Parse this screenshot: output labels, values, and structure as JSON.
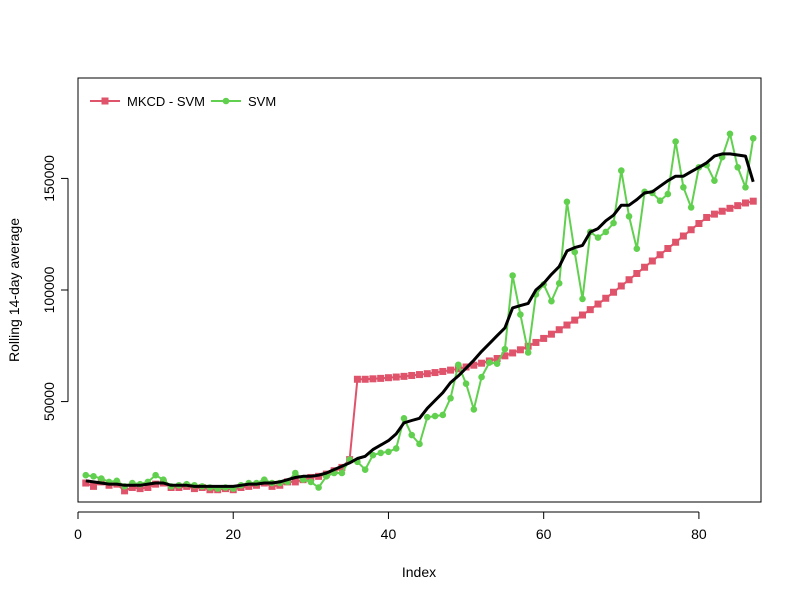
{
  "chart_data": {
    "type": "line",
    "xlabel": "Index",
    "ylabel": "Rolling 14-day average",
    "xlim": [
      0,
      88
    ],
    "ylim": [
      5000,
      195000
    ],
    "x_ticks": [
      0,
      20,
      40,
      60,
      80
    ],
    "y_ticks": [
      50000,
      100000,
      150000
    ],
    "grid": false,
    "legend_position": "top-left",
    "series": [
      {
        "name": "MKCD - SVM",
        "color": "#DF536B",
        "marker": "square",
        "line_width": 2,
        "x": [
          1,
          2,
          3,
          4,
          5,
          6,
          7,
          8,
          9,
          10,
          11,
          12,
          13,
          14,
          15,
          16,
          17,
          18,
          19,
          20,
          21,
          22,
          23,
          24,
          25,
          26,
          27,
          28,
          29,
          30,
          31,
          32,
          33,
          34,
          35,
          36,
          37,
          38,
          39,
          40,
          41,
          42,
          43,
          44,
          45,
          46,
          47,
          48,
          49,
          50,
          51,
          52,
          53,
          54,
          55,
          56,
          57,
          58,
          59,
          60,
          61,
          62,
          63,
          64,
          65,
          66,
          67,
          68,
          69,
          70,
          71,
          72,
          73,
          74,
          75,
          76,
          77,
          78,
          79,
          80,
          81,
          82,
          83,
          84,
          85,
          86,
          87
        ],
        "y": [
          13500,
          12000,
          14000,
          12500,
          13000,
          10000,
          11500,
          11000,
          11500,
          13000,
          13500,
          11500,
          11500,
          12000,
          11000,
          11500,
          10500,
          10500,
          11000,
          10500,
          11500,
          12000,
          12500,
          13500,
          12000,
          12500,
          14000,
          14000,
          15000,
          16000,
          16500,
          17500,
          19000,
          20500,
          24000,
          60000,
          60000,
          60200,
          60400,
          60700,
          61000,
          61300,
          61700,
          62100,
          62500,
          63000,
          63500,
          64100,
          64700,
          65500,
          66300,
          67200,
          68200,
          69300,
          70500,
          71800,
          73200,
          74800,
          76500,
          78300,
          80200,
          82200,
          84300,
          86500,
          88800,
          91200,
          93700,
          96300,
          99000,
          101800,
          104600,
          107400,
          110200,
          113000,
          115800,
          118600,
          121400,
          124200,
          127000,
          129800,
          132500,
          134000,
          135300,
          136600,
          137800,
          139000,
          139800
        ]
      },
      {
        "name": "SVM",
        "color": "#61D04F",
        "marker": "circle",
        "line_width": 2,
        "x": [
          1,
          2,
          3,
          4,
          5,
          6,
          7,
          8,
          9,
          10,
          11,
          12,
          13,
          14,
          15,
          16,
          17,
          18,
          19,
          20,
          21,
          22,
          23,
          24,
          25,
          26,
          27,
          28,
          29,
          30,
          31,
          32,
          33,
          34,
          35,
          36,
          37,
          38,
          39,
          40,
          41,
          42,
          43,
          44,
          45,
          46,
          47,
          48,
          49,
          50,
          51,
          52,
          53,
          54,
          55,
          56,
          57,
          58,
          59,
          60,
          61,
          62,
          63,
          64,
          65,
          66,
          67,
          68,
          69,
          70,
          71,
          72,
          73,
          74,
          75,
          76,
          77,
          78,
          79,
          80,
          81,
          82,
          83,
          84,
          85,
          86,
          87
        ],
        "y": [
          17000,
          16500,
          15500,
          14000,
          14500,
          12000,
          13500,
          13000,
          14000,
          17000,
          15000,
          12000,
          12500,
          13000,
          12500,
          12000,
          11500,
          11000,
          11500,
          11000,
          12500,
          13500,
          13500,
          15000,
          13500,
          13500,
          14000,
          18000,
          15000,
          14000,
          11500,
          16500,
          18000,
          18000,
          24000,
          23000,
          19500,
          26000,
          27000,
          27500,
          29000,
          42500,
          35000,
          31000,
          43000,
          43500,
          44000,
          51500,
          66500,
          58000,
          46500,
          61000,
          67500,
          67000,
          73500,
          106500,
          89000,
          72000,
          98000,
          102500,
          95000,
          103000,
          139500,
          117000,
          96000,
          126000,
          123500,
          126000,
          130000,
          153500,
          133000,
          118500,
          144000,
          143500,
          140000,
          143000,
          166500,
          146000,
          137000,
          155000,
          156000,
          149000,
          159500,
          170000,
          155000,
          146000,
          168000
        ]
      },
      {
        "name": "",
        "color": "#000000",
        "marker": "none",
        "line_width": 3,
        "x": [
          1,
          2,
          3,
          4,
          5,
          6,
          7,
          8,
          9,
          10,
          11,
          12,
          13,
          14,
          15,
          16,
          17,
          18,
          19,
          20,
          21,
          22,
          23,
          24,
          25,
          26,
          27,
          28,
          29,
          30,
          31,
          32,
          33,
          34,
          35,
          36,
          37,
          38,
          39,
          40,
          41,
          42,
          43,
          44,
          45,
          46,
          47,
          48,
          49,
          50,
          51,
          52,
          53,
          54,
          55,
          56,
          57,
          58,
          59,
          60,
          61,
          62,
          63,
          64,
          65,
          66,
          67,
          68,
          69,
          70,
          71,
          72,
          73,
          74,
          75,
          76,
          77,
          78,
          79,
          80,
          81,
          82,
          83,
          84,
          85,
          86,
          87
        ],
        "y": [
          14500,
          14000,
          13500,
          13000,
          13000,
          12500,
          12500,
          12500,
          13000,
          13500,
          13500,
          12500,
          12500,
          12500,
          12000,
          12000,
          12000,
          12000,
          12000,
          12000,
          12500,
          13000,
          13000,
          13500,
          13500,
          14000,
          15000,
          16000,
          16500,
          16500,
          17000,
          18000,
          19500,
          21000,
          22500,
          24500,
          25500,
          28500,
          30500,
          32500,
          35500,
          40500,
          41500,
          42500,
          47000,
          50500,
          54000,
          58500,
          61500,
          65000,
          68500,
          72500,
          76000,
          79500,
          83000,
          92000,
          93000,
          94000,
          100000,
          103000,
          107000,
          110500,
          117500,
          119000,
          120000,
          126000,
          127500,
          131000,
          133500,
          138000,
          138000,
          140500,
          143500,
          144000,
          146500,
          149000,
          151000,
          151000,
          153000,
          155000,
          157000,
          160000,
          161000,
          161000,
          160500,
          160000,
          148500
        ]
      }
    ]
  }
}
